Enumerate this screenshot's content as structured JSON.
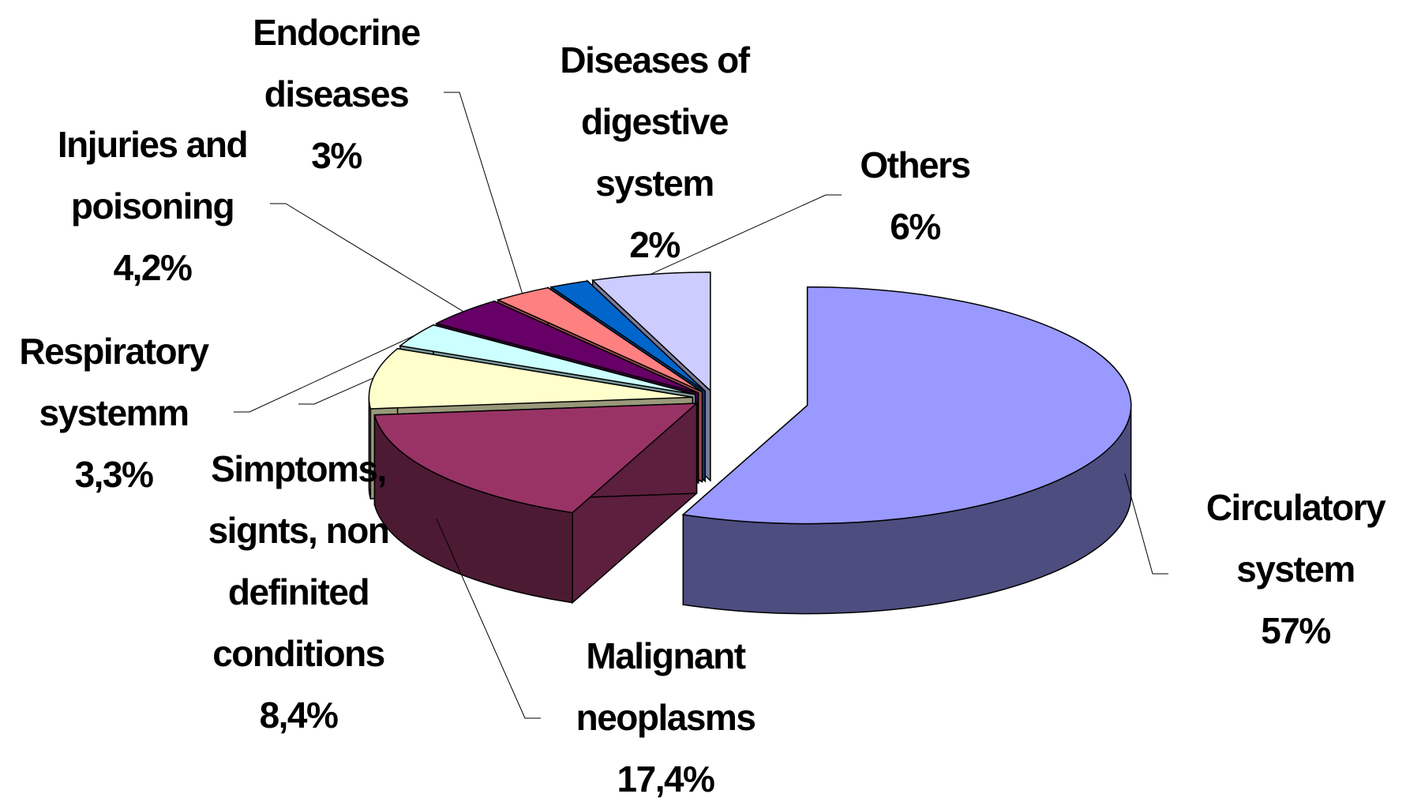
{
  "chart_data": {
    "type": "pie",
    "categories": [
      "Circulatory system",
      "Malignant neoplasms",
      "Simptoms, signts, non definited conditions",
      "Respiratory systemm",
      "Injuries and poisoning",
      "Endocrine diseases",
      "Diseases of digestive system",
      "Others"
    ],
    "values": [
      57,
      17.4,
      8.4,
      3.3,
      4.2,
      3,
      2,
      6
    ],
    "value_labels": [
      "57%",
      "17,4%",
      "8,4%",
      "3,3%",
      "4,2%",
      "3%",
      "2%",
      "6%"
    ],
    "colors": [
      "#9999ff",
      "#993366",
      "#ffffcc",
      "#ccffff",
      "#660066",
      "#ff8080",
      "#0066cc",
      "#ccccff"
    ]
  }
}
